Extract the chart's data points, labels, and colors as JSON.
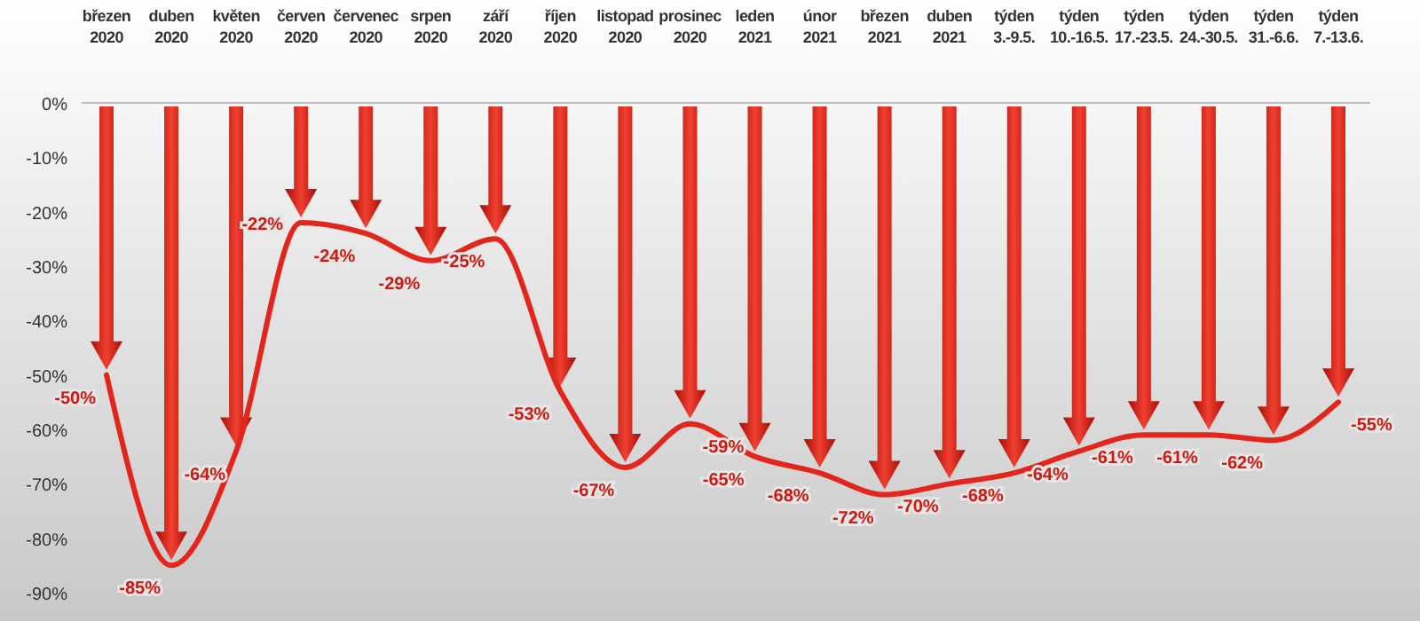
{
  "chart_data": {
    "type": "line",
    "categories": [
      "březen\n2020",
      "duben\n2020",
      "květen\n2020",
      "červen\n2020",
      "červenec\n2020",
      "srpen\n2020",
      "září\n2020",
      "říjen\n2020",
      "listopad\n2020",
      "prosinec\n2020",
      "leden\n2021",
      "únor\n2021",
      "březen\n2021",
      "duben\n2021",
      "týden\n3.-9.5.",
      "týden\n10.-16.5.",
      "týden\n17.-23.5.",
      "týden\n24.-30.5.",
      "týden\n31.-6.6.",
      "týden\n7.-13.6."
    ],
    "series": [
      {
        "color": "#e3251c",
        "values": [
          -50,
          -85,
          -64,
          -22,
          -24,
          -29,
          -25,
          -53,
          -67,
          -59,
          -65,
          -68,
          -72,
          -70,
          -68,
          -64,
          -61,
          -61,
          -62,
          -55
        ],
        "value_labels": [
          "-50%",
          "-85%",
          "-64%",
          "-22%",
          "-24%",
          "-29%",
          "-25%",
          "-53%",
          "-67%",
          "-59%",
          "-65%",
          "-68%",
          "-72%",
          "-70%",
          "-68%",
          "-64%",
          "-61%",
          "-61%",
          "-62%",
          "-55%"
        ]
      }
    ],
    "ylim": [
      -90,
      0
    ],
    "yticks": [
      {
        "value": 0,
        "label": "0%"
      },
      {
        "value": -10,
        "label": "-10%"
      },
      {
        "value": -20,
        "label": "-20%"
      },
      {
        "value": -30,
        "label": "-30%"
      },
      {
        "value": -40,
        "label": "-40%"
      },
      {
        "value": -50,
        "label": "-50%"
      },
      {
        "value": -60,
        "label": "-60%"
      },
      {
        "value": -70,
        "label": "-70%"
      },
      {
        "value": -80,
        "label": "-80%"
      },
      {
        "value": -90,
        "label": "-90%"
      }
    ],
    "grid": false,
    "marker": "none",
    "line_style": "solid"
  }
}
